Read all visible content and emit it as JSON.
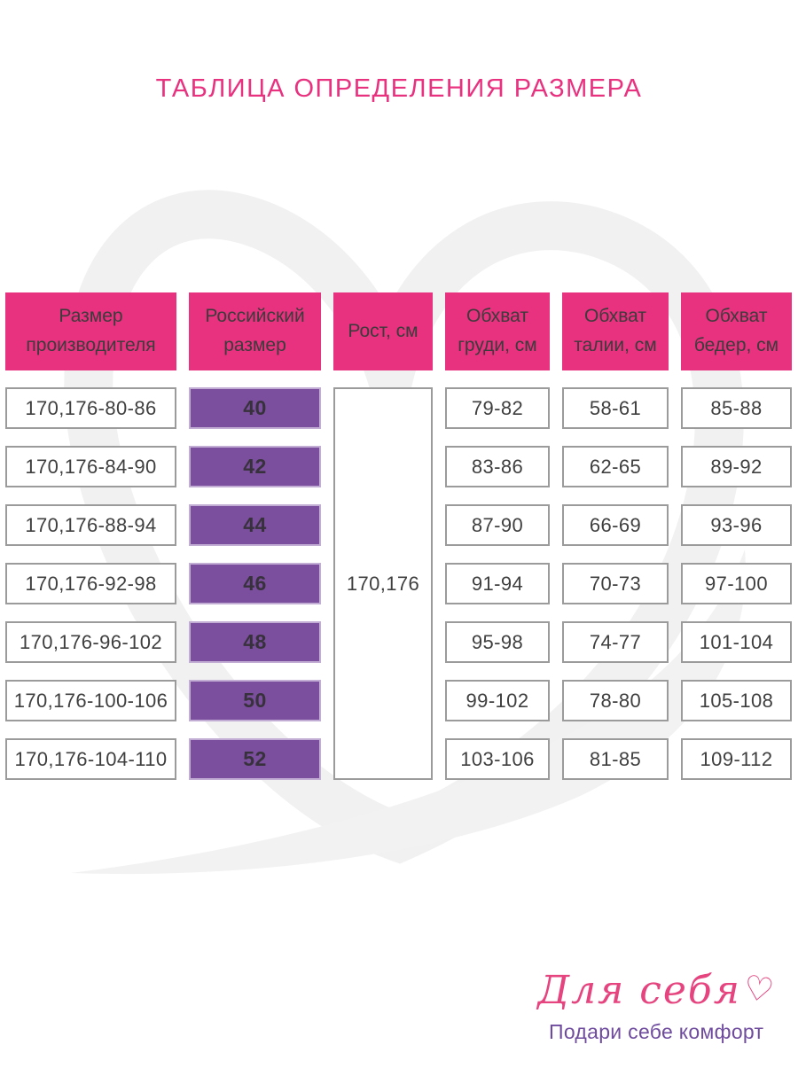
{
  "title": "ТАБЛИЦА ОПРЕДЕЛЕНИЯ РАЗМЕРА",
  "chart_data": {
    "type": "table",
    "title": "ТАБЛИЦА ОПРЕДЕЛЕНИЯ РАЗМЕРА",
    "columns": [
      "Размер производителя",
      "Российский размер",
      "Рост, см",
      "Обхват груди, см",
      "Обхват талии, см",
      "Обхват бедер, см"
    ],
    "merged_height_cell": "170,176",
    "rows": [
      {
        "manufacturer_size": "170,176-80-86",
        "russian_size": "40",
        "chest_cm": "79-82",
        "waist_cm": "58-61",
        "hips_cm": "85-88"
      },
      {
        "manufacturer_size": "170,176-84-90",
        "russian_size": "42",
        "chest_cm": "83-86",
        "waist_cm": "62-65",
        "hips_cm": "89-92"
      },
      {
        "manufacturer_size": "170,176-88-94",
        "russian_size": "44",
        "chest_cm": "87-90",
        "waist_cm": "66-69",
        "hips_cm": "93-96"
      },
      {
        "manufacturer_size": "170,176-92-98",
        "russian_size": "46",
        "chest_cm": "91-94",
        "waist_cm": "70-73",
        "hips_cm": "97-100"
      },
      {
        "manufacturer_size": "170,176-96-102",
        "russian_size": "48",
        "chest_cm": "95-98",
        "waist_cm": "74-77",
        "hips_cm": "101-104"
      },
      {
        "manufacturer_size": "170,176-100-106",
        "russian_size": "50",
        "chest_cm": "99-102",
        "waist_cm": "78-80",
        "hips_cm": "105-108"
      },
      {
        "manufacturer_size": "170,176-104-110",
        "russian_size": "52",
        "chest_cm": "103-106",
        "waist_cm": "81-85",
        "hips_cm": "109-112"
      }
    ]
  },
  "logo": {
    "brand": "Для себя",
    "heart_icon": "♡",
    "tagline": "Подари себе комфорт"
  },
  "colors": {
    "accent_pink": "#e8317f",
    "accent_purple": "#7b4f9e",
    "purple_cell_border": "#c2add4",
    "cell_border": "#9b9b9b",
    "header_text": "#3c3c3c",
    "tagline_purple": "#6f4b9e",
    "watermark_gray": "#f1f1f1"
  }
}
